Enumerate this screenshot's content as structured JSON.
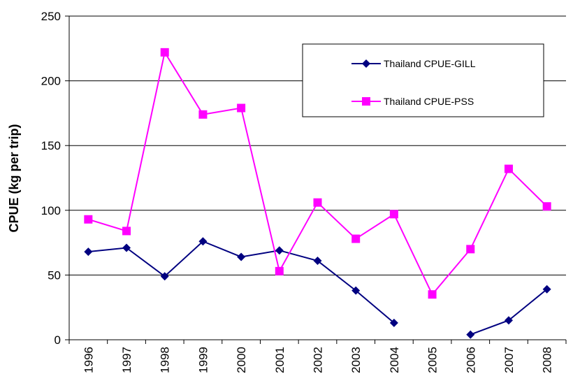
{
  "chart_data": {
    "type": "line",
    "y_label": "CPUE (kg per trip)",
    "categories": [
      "1996",
      "1997",
      "1998",
      "1999",
      "2000",
      "2001",
      "2002",
      "2003",
      "2004",
      "2005",
      "2006",
      "2007",
      "2008"
    ],
    "series": [
      {
        "name": "Thailand CPUE-GILL",
        "color": "#000080",
        "marker": "diamond",
        "values": [
          68,
          71,
          49,
          76,
          64,
          69,
          61,
          38,
          13,
          null,
          4,
          15,
          39
        ]
      },
      {
        "name": "Thailand CPUE-PSS",
        "color": "#ff00ff",
        "marker": "square",
        "values": [
          93,
          84,
          222,
          174,
          179,
          53,
          106,
          78,
          97,
          35,
          70,
          132,
          103
        ]
      }
    ],
    "ylim": [
      0,
      250
    ],
    "yticks": [
      0,
      50,
      100,
      150,
      200,
      250
    ],
    "grid": true,
    "legend": "upper-right"
  }
}
